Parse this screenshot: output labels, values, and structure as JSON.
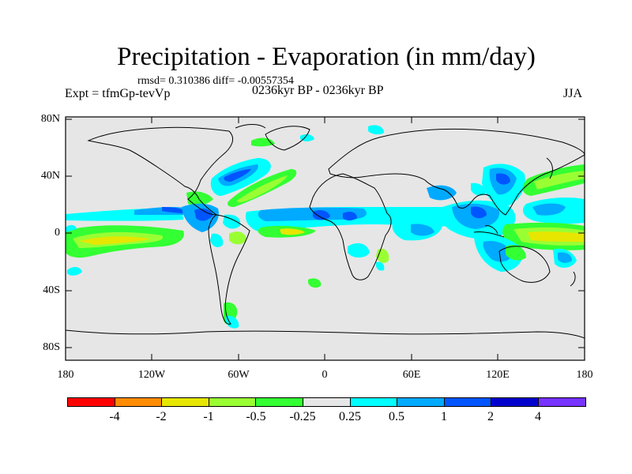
{
  "title": "Precipitation - Evaporation (in mm/day)",
  "stats": "rmsd= 0.310386 diff= -0.00557354",
  "expt": "Expt = tfmGp-tevVp",
  "period": "0236kyr BP - 0236kyr BP",
  "season": "JJA",
  "lat_labels": [
    "80N",
    "40N",
    "0",
    "40S",
    "80S"
  ],
  "lon_labels": [
    "180",
    "120W",
    "60W",
    "0",
    "60E",
    "120E",
    "180"
  ],
  "colorbar": {
    "colors": [
      "#ff0000",
      "#ff8c00",
      "#e6e600",
      "#99ff33",
      "#33ff33",
      "#e6e6e6",
      "#00ffff",
      "#00aaff",
      "#0055ff",
      "#0000cc",
      "#7733ff"
    ],
    "labels": [
      "-4",
      "-2",
      "-1",
      "-0.5",
      "-0.25",
      "0.25",
      "0.5",
      "1",
      "2",
      "4"
    ]
  }
}
